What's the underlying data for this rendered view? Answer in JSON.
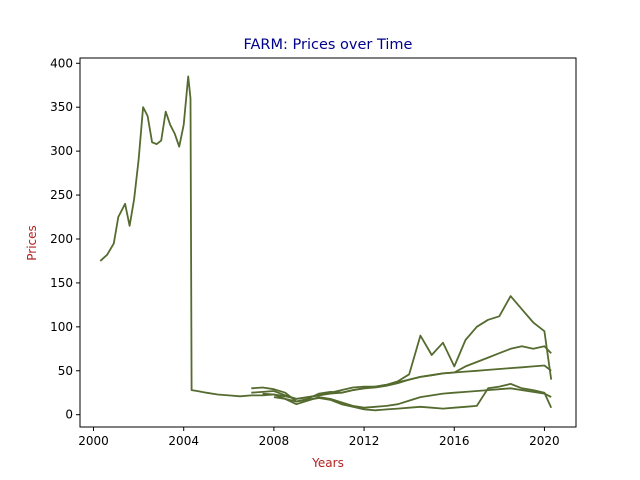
{
  "chart_data": {
    "type": "line",
    "title": "FARM: Prices over Time",
    "xlabel": "Years",
    "ylabel": "Prices",
    "xlim": [
      1999.4,
      2021.4
    ],
    "ylim": [
      -14,
      406
    ],
    "xticks": [
      2000,
      2004,
      2008,
      2012,
      2016,
      2020
    ],
    "xtick_labels": [
      "2000",
      "2004",
      "2008",
      "2012",
      "2016",
      "2020"
    ],
    "yticks": [
      0,
      50,
      100,
      150,
      200,
      250,
      300,
      350,
      400
    ],
    "ytick_labels": [
      "0",
      "50",
      "100",
      "150",
      "200",
      "250",
      "300",
      "350",
      "400"
    ],
    "grid": false,
    "colors": {
      "line": "#556b2f",
      "title": "#00008b",
      "axis_label": "#b22222"
    },
    "series": [
      {
        "x": [
          2000.3,
          2000.6,
          2000.9,
          2001.1,
          2001.4,
          2001.6,
          2001.8,
          2002.0,
          2002.2,
          2002.4,
          2002.6,
          2002.8,
          2003.0,
          2003.2,
          2003.4,
          2003.6,
          2003.8,
          2004.0,
          2004.2,
          2004.3,
          2004.35,
          2004.6,
          2005.0,
          2005.5,
          2006.0,
          2006.5,
          2007.0,
          2007.5,
          2008.0,
          2008.5,
          2009.0,
          2009.5,
          2010.0,
          2010.5,
          2011.0,
          2011.5,
          2012.0,
          2012.5,
          2013.0,
          2013.5,
          2014.0,
          2014.5,
          2015.0,
          2015.5,
          2016.0,
          2016.5,
          2017.0,
          2017.5,
          2018.0,
          2018.5,
          2019.0,
          2019.5,
          2020.0,
          2020.3
        ],
        "values": [
          175,
          182,
          195,
          225,
          240,
          215,
          245,
          290,
          350,
          340,
          310,
          308,
          312,
          345,
          330,
          320,
          305,
          330,
          385,
          360,
          28,
          27,
          25,
          23,
          22,
          21,
          22,
          22,
          23,
          21,
          18,
          20,
          22,
          25,
          28,
          31,
          32,
          32,
          34,
          37,
          40,
          43,
          45,
          47,
          48,
          49,
          50,
          51,
          52,
          53,
          54,
          55,
          56,
          50
        ]
      },
      {
        "x": [
          2007.0,
          2007.5,
          2008.0,
          2008.5,
          2009.0,
          2009.5,
          2010.0,
          2010.5,
          2011.0,
          2011.5,
          2012.0,
          2012.5,
          2013.0,
          2013.5,
          2014.0,
          2014.5,
          2015.0,
          2015.5,
          2016.0,
          2016.5,
          2017.0,
          2017.5,
          2018.0,
          2018.5,
          2019.0,
          2019.5,
          2020.0,
          2020.3
        ],
        "values": [
          30,
          31,
          29,
          25,
          15,
          18,
          24,
          26,
          25,
          28,
          30,
          32,
          34,
          38,
          46,
          90,
          68,
          82,
          55,
          85,
          100,
          108,
          112,
          135,
          120,
          105,
          95,
          40
        ]
      },
      {
        "x": [
          2007.0,
          2007.5,
          2008.0,
          2008.5,
          2009.0,
          2009.5,
          2010.0,
          2010.5,
          2011.0,
          2011.5,
          2012.0,
          2012.5,
          2013.0,
          2013.5,
          2014.0,
          2014.5,
          2015.0,
          2015.5,
          2016.0,
          2016.5,
          2017.0,
          2017.5,
          2018.0,
          2018.5,
          2019.0,
          2019.5,
          2020.0,
          2020.3
        ],
        "values": [
          25,
          26,
          27,
          22,
          18,
          20,
          22,
          24,
          25,
          28,
          30,
          31,
          33,
          36,
          40,
          43,
          45,
          47,
          48,
          55,
          60,
          65,
          70,
          75,
          78,
          75,
          78,
          70
        ]
      },
      {
        "x": [
          2007.5,
          2008.0,
          2008.5,
          2009.0,
          2009.5,
          2010.0,
          2010.5,
          2011.0,
          2011.5,
          2012.0,
          2012.5,
          2013.0,
          2013.5,
          2014.0,
          2014.5,
          2015.0,
          2015.5,
          2016.0,
          2016.5,
          2017.0,
          2017.5,
          2018.0,
          2018.5,
          2019.0,
          2019.5,
          2020.0,
          2020.3
        ],
        "values": [
          24,
          23,
          18,
          12,
          16,
          20,
          18,
          14,
          10,
          8,
          9,
          10,
          12,
          16,
          20,
          22,
          24,
          25,
          26,
          27,
          28,
          29,
          30,
          28,
          26,
          24,
          20
        ]
      },
      {
        "x": [
          2008.0,
          2008.5,
          2009.0,
          2009.5,
          2010.0,
          2010.5,
          2011.0,
          2011.5,
          2012.0,
          2012.5,
          2013.0,
          2013.5,
          2014.0,
          2014.5,
          2015.0,
          2015.5,
          2016.0,
          2016.5,
          2017.0,
          2017.5,
          2018.0,
          2018.5,
          2019.0,
          2019.5,
          2020.0,
          2020.3
        ],
        "values": [
          20,
          18,
          15,
          17,
          19,
          17,
          12,
          9,
          6,
          5,
          6,
          7,
          8,
          9,
          8,
          7,
          8,
          9,
          10,
          30,
          32,
          35,
          30,
          28,
          25,
          8
        ]
      }
    ]
  }
}
